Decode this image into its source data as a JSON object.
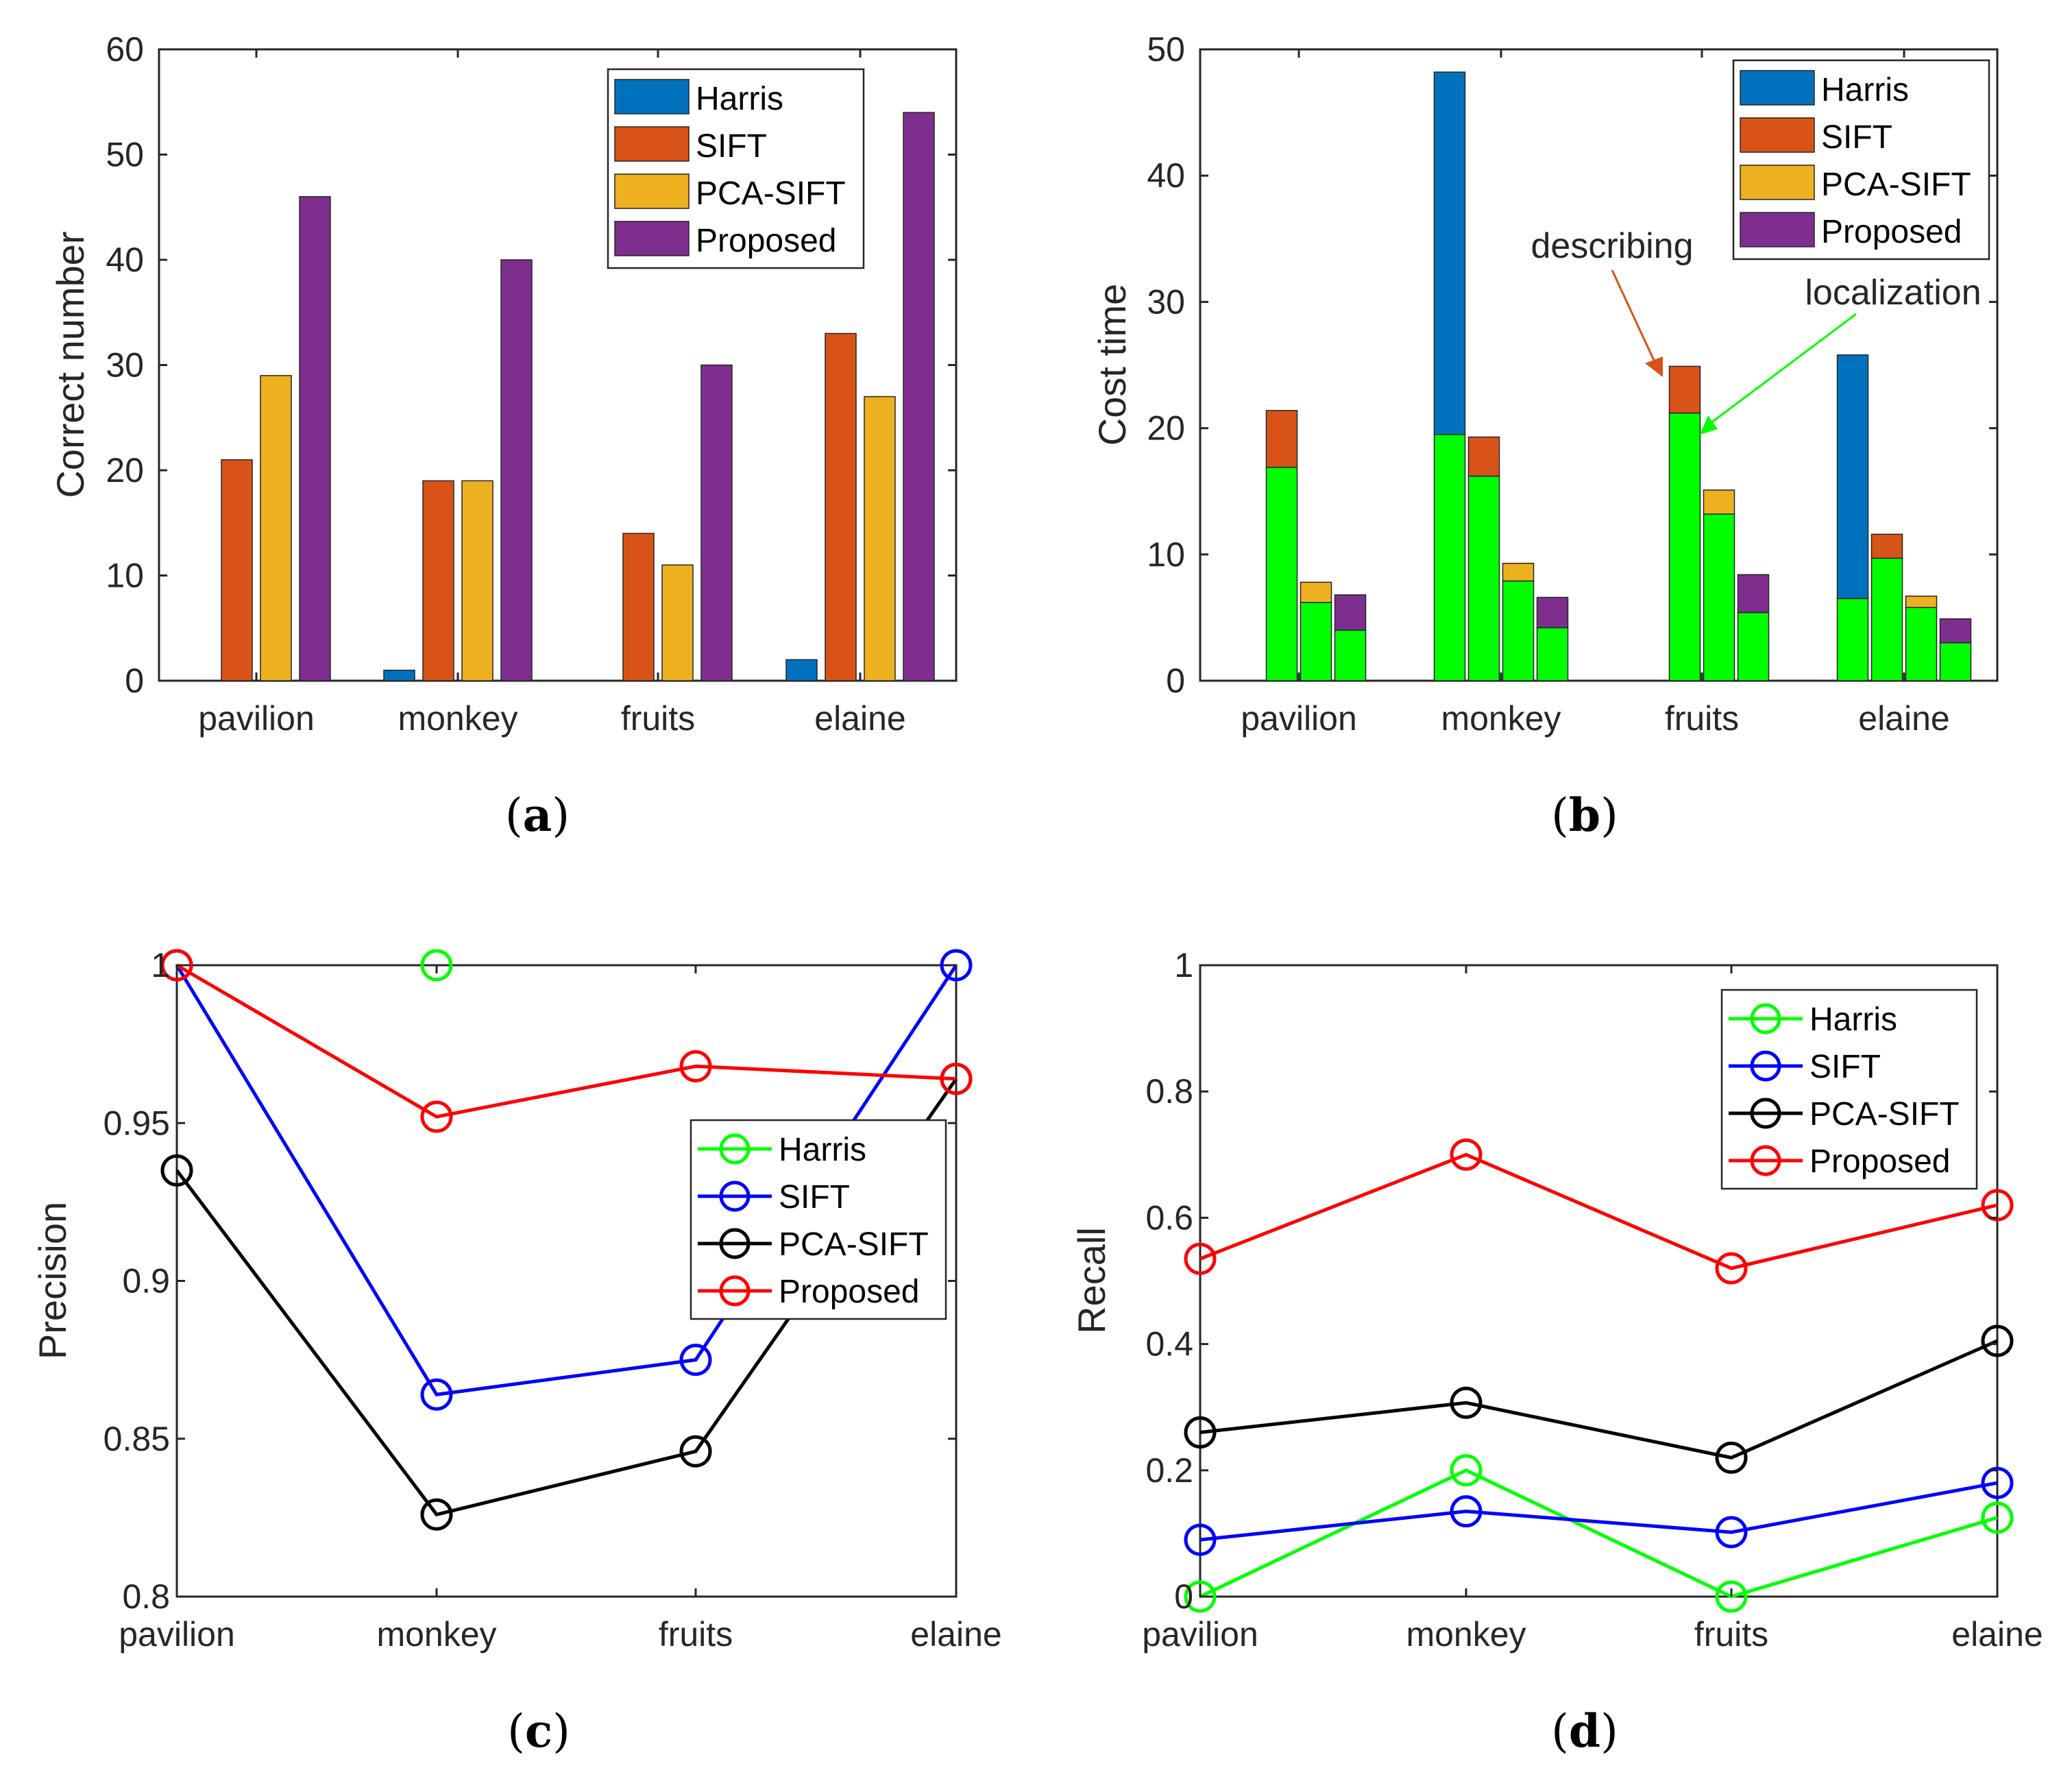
{
  "colors": {
    "harris_bar": "#0072BD",
    "sift_bar": "#D95319",
    "pcasift_bar": "#EDB120",
    "proposed_bar": "#7E2F8E",
    "localization": "#00FF00",
    "line_harris": "#00FF00",
    "line_sift": "#0000FF",
    "line_pcasift": "#000000",
    "line_proposed": "#FF0000",
    "describing_anno": "#D95319"
  },
  "chart_data": [
    {
      "id": "a",
      "type": "bar",
      "caption": "a",
      "xlabel": "",
      "ylabel": "Correct number",
      "ylim": [
        0,
        60
      ],
      "yticks": [
        "0",
        "10",
        "20",
        "30",
        "40",
        "50",
        "60"
      ],
      "categories": [
        "pavilion",
        "monkey",
        "fruits",
        "elaine"
      ],
      "series": [
        {
          "name": "Harris",
          "values": [
            0,
            1,
            0,
            2
          ]
        },
        {
          "name": "SIFT",
          "values": [
            21,
            19,
            14,
            33
          ]
        },
        {
          "name": "PCA-SIFT",
          "values": [
            29,
            19,
            11,
            27
          ]
        },
        {
          "name": "Proposed",
          "values": [
            46,
            40,
            30,
            54
          ]
        }
      ],
      "legend_position": "top-right",
      "grid": false
    },
    {
      "id": "b",
      "type": "bar",
      "subtype": "stacked",
      "caption": "b",
      "xlabel": "",
      "ylabel": "Cost time",
      "ylim": [
        0,
        50
      ],
      "yticks": [
        "0",
        "10",
        "20",
        "30",
        "40",
        "50"
      ],
      "categories": [
        "pavilion",
        "monkey",
        "fruits",
        "elaine"
      ],
      "series": [
        {
          "name": "Harris",
          "localization": [
            0,
            19.5,
            0,
            6.5
          ],
          "describing": [
            0,
            28.7,
            0,
            19.3
          ]
        },
        {
          "name": "SIFT",
          "localization": [
            16.9,
            16.2,
            21.2,
            9.7
          ],
          "describing": [
            4.5,
            3.1,
            3.7,
            1.9
          ]
        },
        {
          "name": "PCA-SIFT",
          "localization": [
            6.2,
            7.9,
            13.2,
            5.8
          ],
          "describing": [
            1.6,
            1.4,
            1.9,
            0.9
          ]
        },
        {
          "name": "Proposed",
          "localization": [
            4.0,
            4.2,
            5.4,
            3.0
          ],
          "describing": [
            2.8,
            2.4,
            3.0,
            1.9
          ]
        }
      ],
      "annotations": [
        {
          "text": "describing",
          "target": "fruits SIFT describing segment"
        },
        {
          "text": "localization",
          "target": "fruits SIFT localization segment"
        }
      ],
      "legend_position": "top-right",
      "grid": false
    },
    {
      "id": "c",
      "type": "line",
      "caption": "c",
      "xlabel": "",
      "ylabel": "Precision",
      "ylim": [
        0.8,
        1
      ],
      "yticks": [
        "0.8",
        "0.85",
        "0.9",
        "0.95",
        "1"
      ],
      "categories": [
        "pavilion",
        "monkey",
        "fruits",
        "elaine"
      ],
      "series": [
        {
          "name": "Harris",
          "values": [
            null,
            1.0,
            null,
            null
          ]
        },
        {
          "name": "SIFT",
          "values": [
            1.0,
            0.864,
            0.875,
            1.0
          ]
        },
        {
          "name": "PCA-SIFT",
          "values": [
            0.935,
            0.826,
            0.846,
            0.964
          ]
        },
        {
          "name": "Proposed",
          "values": [
            1.0,
            0.952,
            0.968,
            0.964
          ]
        }
      ],
      "legend_position": "center-right",
      "grid": false
    },
    {
      "id": "d",
      "type": "line",
      "caption": "d",
      "xlabel": "",
      "ylabel": "Recall",
      "ylim": [
        0,
        1
      ],
      "yticks": [
        "0",
        "0.2",
        "0.4",
        "0.6",
        "0.8",
        "1"
      ],
      "categories": [
        "pavilion",
        "monkey",
        "fruits",
        "elaine"
      ],
      "series": [
        {
          "name": "Harris",
          "values": [
            0.0,
            0.2,
            0.0,
            0.125
          ]
        },
        {
          "name": "SIFT",
          "values": [
            0.09,
            0.135,
            0.102,
            0.18
          ]
        },
        {
          "name": "PCA-SIFT",
          "values": [
            0.26,
            0.307,
            0.22,
            0.405
          ]
        },
        {
          "name": "Proposed",
          "values": [
            0.535,
            0.7,
            0.52,
            0.62
          ]
        }
      ],
      "legend_position": "top-right",
      "grid": false
    }
  ]
}
